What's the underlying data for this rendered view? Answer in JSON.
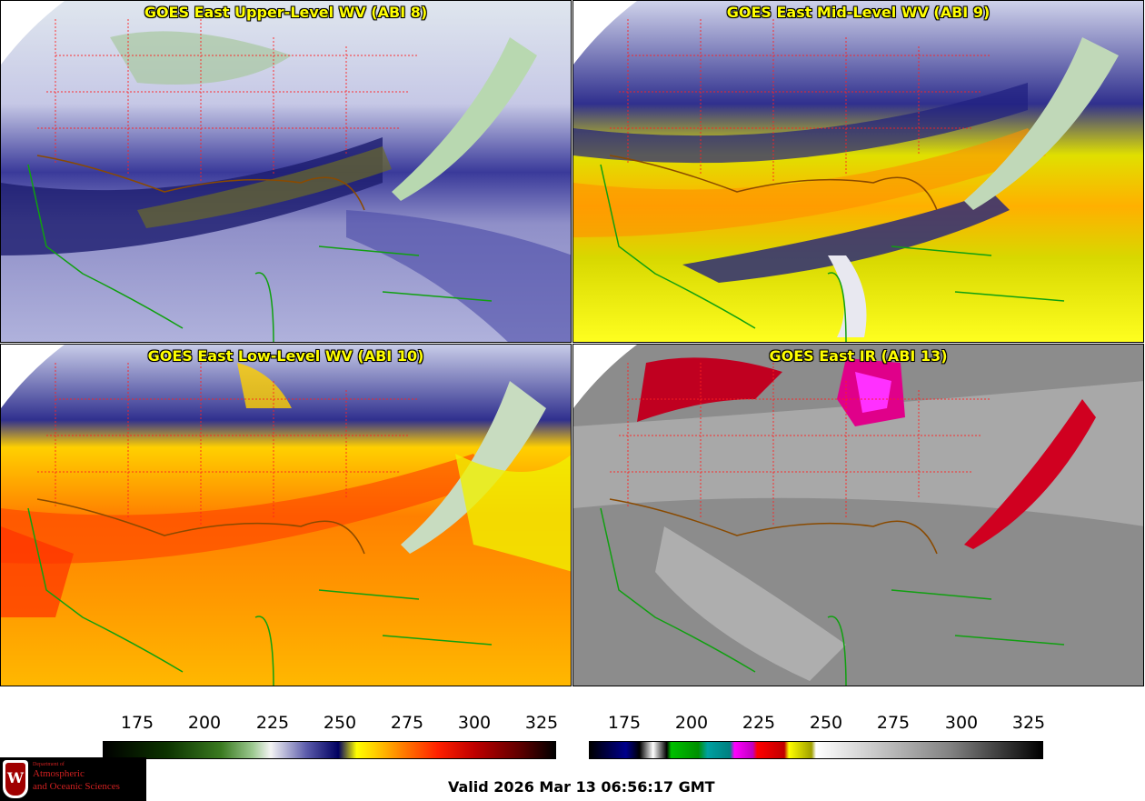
{
  "panels": [
    {
      "title": "GOES East Upper-Level WV (ABI 8)"
    },
    {
      "title": "GOES East Mid-Level WV (ABI 9)"
    },
    {
      "title": "GOES East Low-Level WV (ABI 10)"
    },
    {
      "title": "GOES East IR (ABI 13)"
    }
  ],
  "colorbars": [
    {
      "ticks": [
        "175",
        "200",
        "225",
        "250",
        "275",
        "300",
        "325"
      ]
    },
    {
      "ticks": [
        "175",
        "200",
        "225",
        "250",
        "275",
        "300",
        "325"
      ]
    }
  ],
  "logo": {
    "line1": "Department of",
    "line2": "Atmospheric",
    "line3": "and Oceanic Sciences",
    "mark": "W"
  },
  "valid_time": "Valid 2026 Mar 13 06:56:17 GMT",
  "colors": {
    "title": "#ffff00",
    "state_borders": "#ff2020",
    "coastlines": "#10a010",
    "country_borders": "#8a4a00"
  }
}
